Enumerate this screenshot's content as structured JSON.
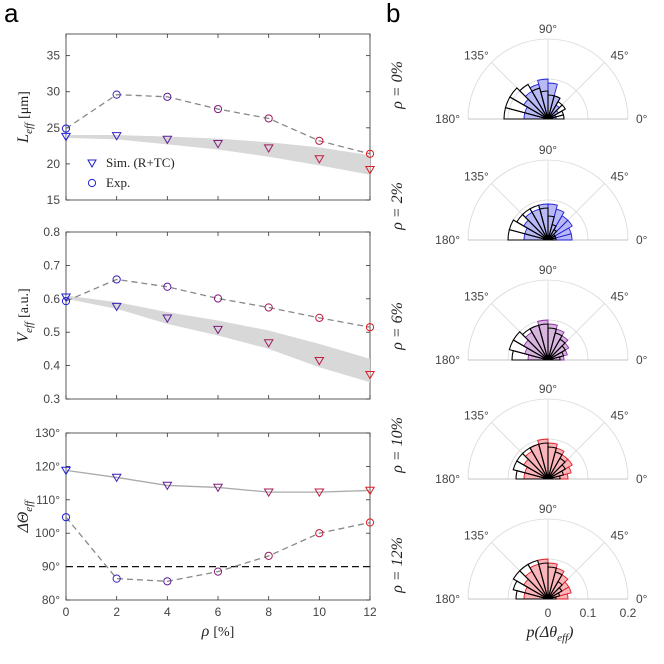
{
  "panels": {
    "a": "a",
    "b": "b"
  },
  "colors": {
    "blue": "#1f1fd6",
    "red": "#e01b24",
    "purple": "#8a2fa0",
    "band": "#d8d8d8",
    "dashed": "#888888",
    "solid": "#aaaaaa"
  },
  "legend": {
    "sim": "Sim. (R+TC)",
    "exp": "Exp."
  },
  "chart_data": [
    {
      "id": "L_eff",
      "type": "line",
      "ylabel": "L_eff [μm]",
      "ylabel_main": "L",
      "ylabel_sub": "eff",
      "ylabel_unit": "[μm]",
      "xlabel": "",
      "ylim": [
        15,
        38
      ],
      "yticks": [
        "15",
        "20",
        "25",
        "30",
        "35"
      ],
      "ytick_values": [
        15,
        20,
        25,
        30,
        35
      ],
      "x": [
        0,
        2,
        4,
        6,
        8,
        10,
        12
      ],
      "series": [
        {
          "name": "Sim. (R+TC)",
          "marker": "triangle",
          "values": [
            23.8,
            23.9,
            23.4,
            22.8,
            22.2,
            20.7,
            19.2
          ]
        },
        {
          "name": "Exp.",
          "marker": "circle",
          "values": [
            24.9,
            29.6,
            29.3,
            27.6,
            26.3,
            23.2,
            21.4
          ]
        }
      ],
      "band": {
        "x": [
          0,
          2,
          4,
          6,
          8,
          10,
          12
        ],
        "upper": [
          24.0,
          24.0,
          23.8,
          23.5,
          23.0,
          22.3,
          21.2
        ],
        "lower": [
          23.6,
          23.4,
          22.7,
          22.0,
          21.0,
          19.8,
          18.5
        ]
      }
    },
    {
      "id": "V_eff",
      "type": "line",
      "ylabel": "V_eff [a.u.]",
      "ylabel_main": "V",
      "ylabel_sub": "eff",
      "ylabel_unit": "[a.u.]",
      "xlabel": "",
      "ylim": [
        0.3,
        0.8
      ],
      "yticks": [
        "0.3",
        "0.4",
        "0.5",
        "0.6",
        "0.7",
        "0.8"
      ],
      "ytick_values": [
        0.3,
        0.4,
        0.5,
        0.6,
        0.7,
        0.8
      ],
      "x": [
        0,
        2,
        4,
        6,
        8,
        10,
        12
      ],
      "series": [
        {
          "name": "Sim. (R+TC)",
          "marker": "triangle",
          "values": [
            0.605,
            0.577,
            0.542,
            0.508,
            0.468,
            0.415,
            0.373
          ]
        },
        {
          "name": "Exp.",
          "marker": "circle",
          "values": [
            0.593,
            0.658,
            0.636,
            0.601,
            0.574,
            0.543,
            0.515
          ]
        }
      ],
      "band": {
        "x": [
          0,
          2,
          4,
          6,
          8,
          10,
          12
        ],
        "upper": [
          0.61,
          0.59,
          0.56,
          0.535,
          0.505,
          0.465,
          0.42
        ],
        "lower": [
          0.6,
          0.57,
          0.525,
          0.49,
          0.45,
          0.395,
          0.35
        ]
      }
    },
    {
      "id": "DeltaTheta_eff",
      "type": "line",
      "ylabel": "ΔΘ_eff",
      "ylabel_main": "ΔΘ",
      "ylabel_sub": "eff",
      "ylabel_unit": "",
      "xlabel": "ρ [%]",
      "xlabel_main": "ρ",
      "xlabel_unit": "[%]",
      "ylim": [
        80,
        130
      ],
      "yticks": [
        "80°",
        "90°",
        "100°",
        "110°",
        "120°",
        "130°"
      ],
      "ytick_values": [
        80,
        90,
        100,
        110,
        120,
        130
      ],
      "xticks": [
        "0",
        "2",
        "4",
        "6",
        "8",
        "10",
        "12"
      ],
      "xtick_values": [
        0,
        2,
        4,
        6,
        8,
        10,
        12
      ],
      "x": [
        0,
        2,
        4,
        6,
        8,
        10,
        12
      ],
      "series": [
        {
          "name": "Sim. (R+TC)",
          "marker": "triangle",
          "values": [
            118.8,
            116.7,
            114.3,
            113.7,
            112.3,
            112.3,
            112.8
          ]
        },
        {
          "name": "Exp.",
          "marker": "circle",
          "values": [
            104.8,
            86.4,
            85.6,
            88.5,
            93.2,
            100.0,
            103.2
          ]
        }
      ],
      "reference_line": 90
    },
    {
      "id": "polar_histograms",
      "type": "polar",
      "xlabel": "p(Δθ_eff)",
      "xlabel_main": "p(Δθ",
      "xlabel_sub": "eff",
      "xlabel_close": ")",
      "angle_labels": [
        "180°",
        "135°",
        "90°",
        "45°",
        "0°"
      ],
      "radial_ticks": [
        "0",
        "0.1",
        "0.2"
      ],
      "radial_max": 0.2,
      "bins_deg": [
        0,
        15,
        30,
        45,
        60,
        75,
        90,
        105,
        120,
        135,
        150,
        165
      ],
      "rows": [
        {
          "label": "ρ = 0%",
          "label_main": "ρ = 0%",
          "color": "blue",
          "sim": [
            0.02,
            0.02,
            0.03,
            0.04,
            0.06,
            0.09,
            0.1,
            0.09,
            0.08,
            0.07,
            0.06,
            0.06
          ],
          "exp": [
            0.04,
            0.04,
            0.05,
            0.05,
            0.06,
            0.06,
            0.07,
            0.08,
            0.1,
            0.11,
            0.11,
            0.11
          ]
        },
        {
          "label": "ρ = 2%",
          "label_main": "ρ = 2%",
          "color": "blue",
          "sim": [
            0.06,
            0.06,
            0.07,
            0.07,
            0.08,
            0.09,
            0.09,
            0.08,
            0.08,
            0.07,
            0.06,
            0.06
          ],
          "exp": [
            0.02,
            0.02,
            0.02,
            0.03,
            0.04,
            0.06,
            0.08,
            0.09,
            0.09,
            0.09,
            0.1,
            0.1
          ]
        },
        {
          "label": "ρ = 6%",
          "label_main": "ρ = 6%",
          "color": "purple",
          "sim": [
            0.04,
            0.05,
            0.06,
            0.07,
            0.08,
            0.09,
            0.1,
            0.09,
            0.08,
            0.07,
            0.06,
            0.05
          ],
          "exp": [
            0.03,
            0.04,
            0.05,
            0.06,
            0.07,
            0.08,
            0.09,
            0.09,
            0.09,
            0.1,
            0.1,
            0.09
          ]
        },
        {
          "label": "ρ = 10%",
          "label_main": "ρ = 10%",
          "color": "red",
          "sim": [
            0.05,
            0.06,
            0.07,
            0.07,
            0.08,
            0.09,
            0.1,
            0.09,
            0.08,
            0.07,
            0.06,
            0.06
          ],
          "exp": [
            0.03,
            0.04,
            0.05,
            0.06,
            0.07,
            0.08,
            0.09,
            0.09,
            0.09,
            0.09,
            0.09,
            0.08
          ]
        },
        {
          "label": "ρ = 12%",
          "label_main": "ρ = 12%",
          "color": "red",
          "sim": [
            0.05,
            0.06,
            0.06,
            0.07,
            0.08,
            0.09,
            0.1,
            0.09,
            0.08,
            0.07,
            0.06,
            0.06
          ],
          "exp": [
            0.02,
            0.03,
            0.04,
            0.05,
            0.07,
            0.08,
            0.09,
            0.1,
            0.1,
            0.1,
            0.09,
            0.08
          ]
        }
      ]
    }
  ]
}
